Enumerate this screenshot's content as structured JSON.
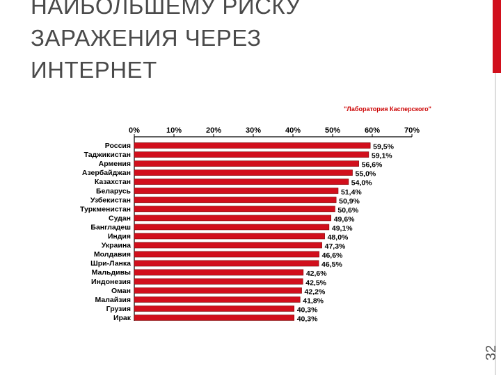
{
  "slide": {
    "title_lines": [
      "НАИБОЛЬШЕМУ РИСКУ",
      "ЗАРАЖЕНИЯ ЧЕРЕЗ",
      "ИНТЕРНЕТ"
    ],
    "slide_number": "32"
  },
  "chart_data": {
    "type": "bar",
    "orientation": "horizontal",
    "source": "\"Лаборатория Касперского\"",
    "categories": [
      "Россия",
      "Таджикистан",
      "Армения",
      "Азербайджан",
      "Казахстан",
      "Беларусь",
      "Узбекистан",
      "Туркменистан",
      "Судан",
      "Бангладеш",
      "Индия",
      "Украина",
      "Молдавия",
      "Шри-Ланка",
      "Мальдивы",
      "Индонезия",
      "Оман",
      "Малайзия",
      "Грузия",
      "Ирак"
    ],
    "values": [
      59.5,
      59.1,
      56.6,
      55.0,
      54.0,
      51.4,
      50.9,
      50.6,
      49.6,
      49.1,
      48.0,
      47.3,
      46.6,
      46.5,
      42.6,
      42.5,
      42.2,
      41.8,
      40.3,
      40.3
    ],
    "value_labels": [
      "59,5%",
      "59,1%",
      "56,6%",
      "55,0%",
      "54,0%",
      "51,4%",
      "50,9%",
      "50,6%",
      "49,6%",
      "49,1%",
      "48,0%",
      "47,3%",
      "46,6%",
      "46,5%",
      "42,6%",
      "42,5%",
      "42,2%",
      "41,8%",
      "40,3%",
      "40,3%"
    ],
    "color": "#d10f1c",
    "xlim": [
      0,
      70
    ],
    "xticks": [
      {
        "value": 0,
        "label": "0%"
      },
      {
        "value": 10,
        "label": "10%"
      },
      {
        "value": 20,
        "label": "20%"
      },
      {
        "value": 30,
        "label": "30%"
      },
      {
        "value": 40,
        "label": "40%"
      },
      {
        "value": 50,
        "label": "50%"
      },
      {
        "value": 60,
        "label": "60%"
      },
      {
        "value": 70,
        "label": "70%"
      }
    ]
  }
}
